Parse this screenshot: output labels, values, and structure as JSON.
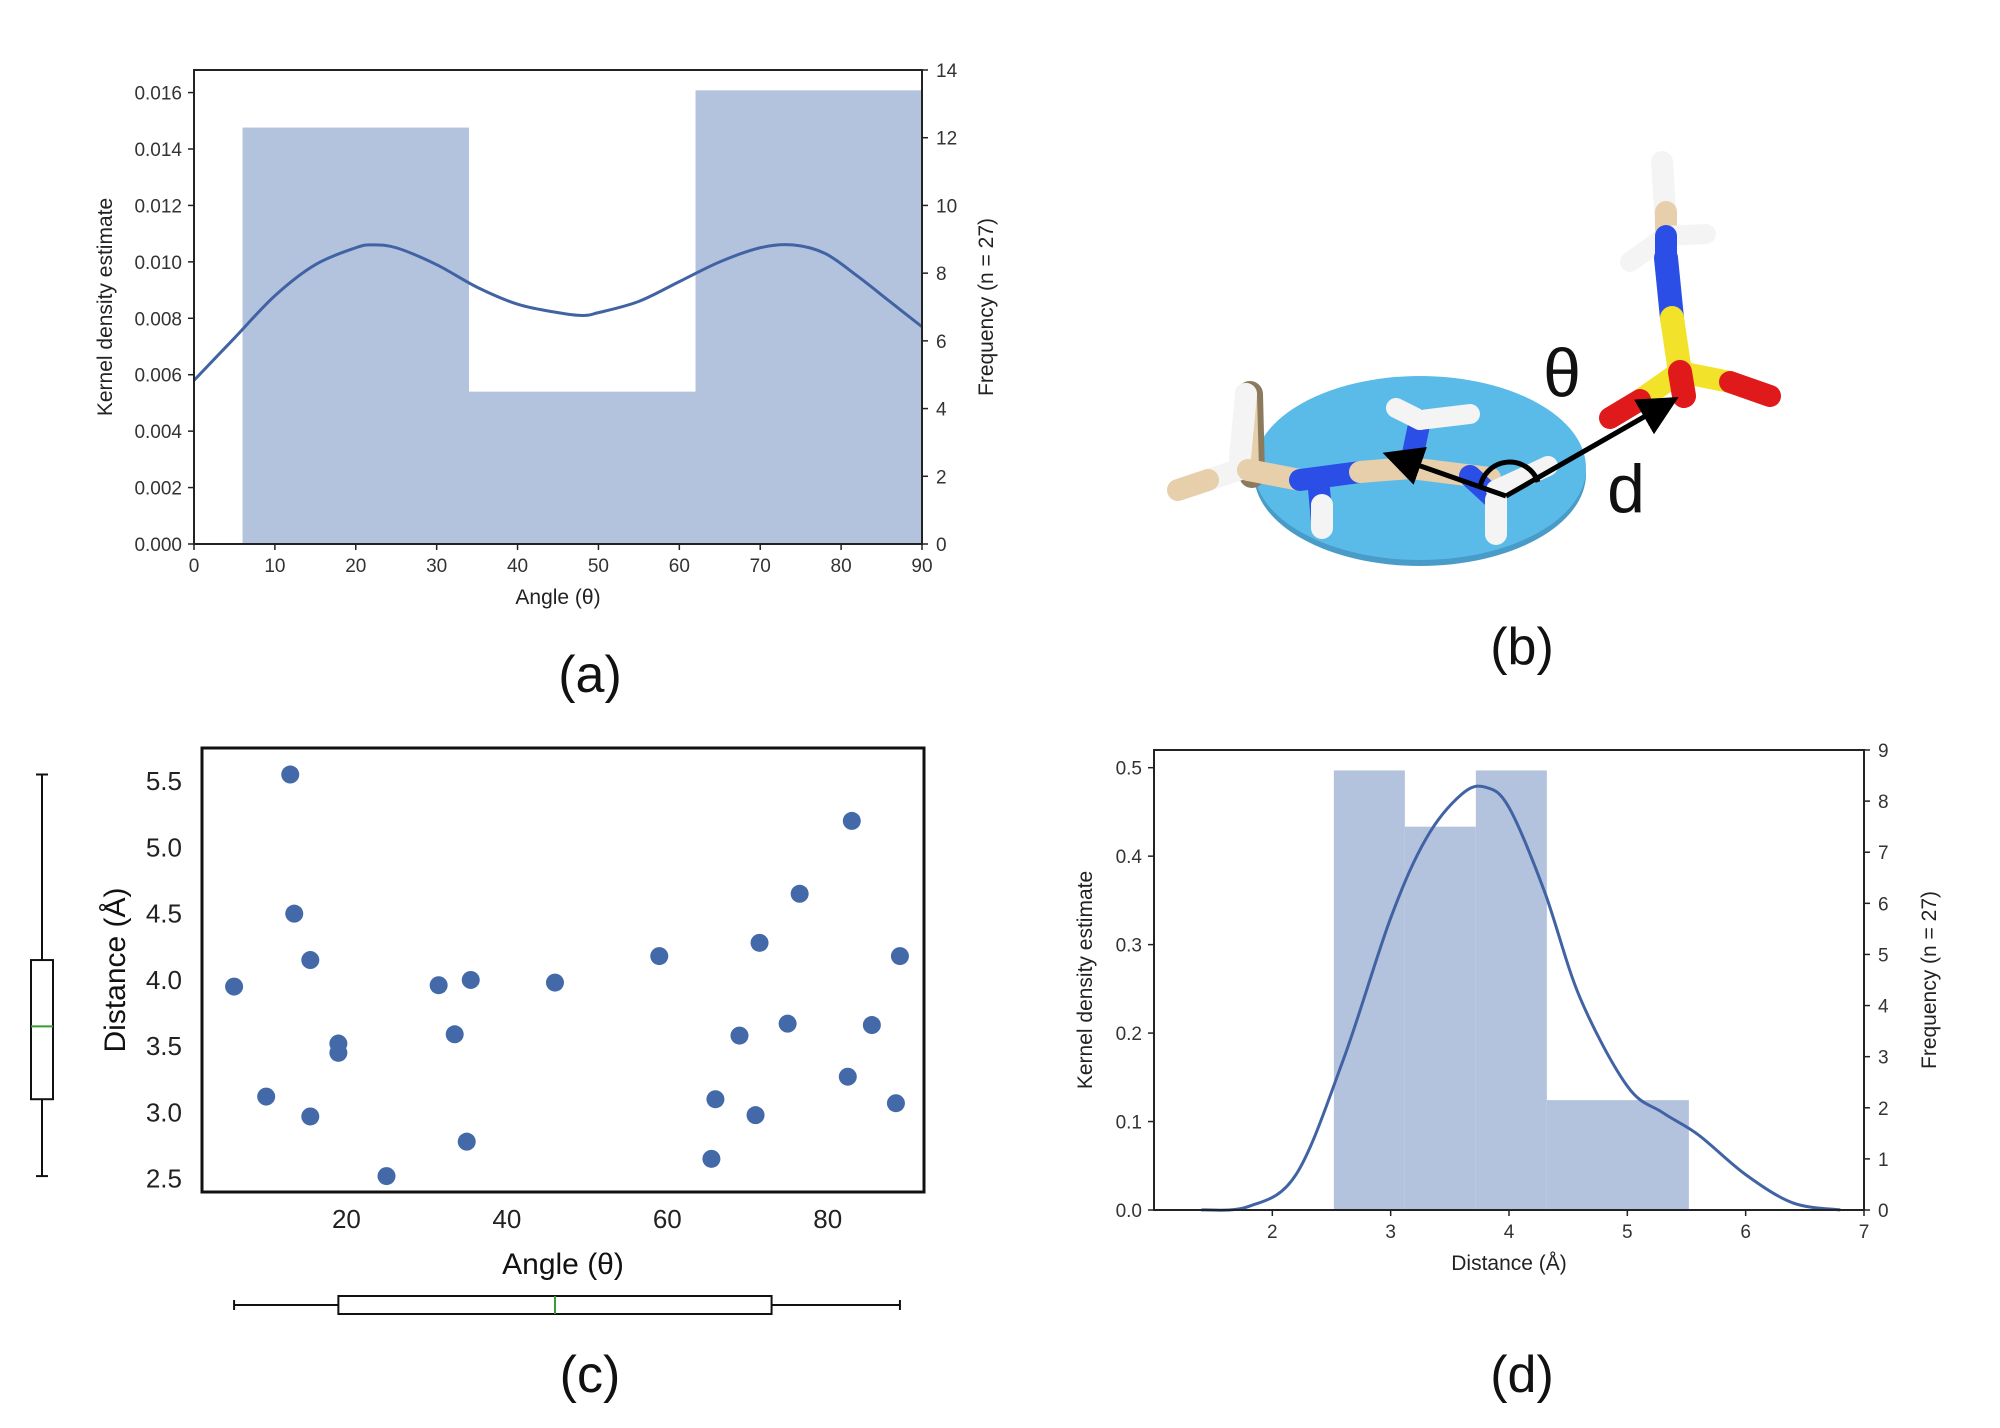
{
  "colors": {
    "bar": "#b4c3dd",
    "kde": "#4163a4",
    "point": "#4369a8",
    "median": "#3a9a3a",
    "disk": "#5bbbe8",
    "carbon": "#e7cfac",
    "nitrogen": "#2b4fe6",
    "sulfur": "#f2e22a",
    "oxygen": "#e01a1a",
    "hydrogen": "#f4f4f4",
    "arrow": "#000000"
  },
  "panel_labels": {
    "a": "(a)",
    "b": "(b)",
    "c": "(c)",
    "d": "(d)"
  },
  "molecule": {
    "theta_label": "θ",
    "d_label": "d"
  },
  "chart_data": [
    {
      "id": "a",
      "type": "bar",
      "xlabel": "Angle (θ)",
      "ylabel": "Kernel density estimate",
      "ylabel_right": "Frequency (n = 27)",
      "xlim": [
        0,
        90
      ],
      "ylim": [
        0,
        0.0168
      ],
      "ylim_right": [
        0,
        14
      ],
      "xticks": [
        "0",
        "10",
        "20",
        "30",
        "40",
        "50",
        "60",
        "70",
        "80",
        "90"
      ],
      "yticks": [
        "0.000",
        "0.002",
        "0.004",
        "0.006",
        "0.008",
        "0.010",
        "0.012",
        "0.014",
        "0.016"
      ],
      "yticks_right": [
        "0",
        "2",
        "4",
        "6",
        "8",
        "10",
        "12",
        "14"
      ],
      "histogram": [
        {
          "x0": 6,
          "x1": 34,
          "count": 12.3
        },
        {
          "x0": 34,
          "x1": 62,
          "count": 4.5
        },
        {
          "x0": 62,
          "x1": 90,
          "count": 13.4
        }
      ],
      "kde": {
        "x": [
          0,
          5,
          10,
          15,
          20,
          22,
          25,
          30,
          35,
          40,
          45,
          48,
          50,
          55,
          60,
          65,
          70,
          74,
          78,
          82,
          86,
          90
        ],
        "y": [
          0.0058,
          0.0073,
          0.0088,
          0.0099,
          0.0105,
          0.0106,
          0.0105,
          0.0099,
          0.0091,
          0.0085,
          0.0082,
          0.0081,
          0.0082,
          0.0086,
          0.0093,
          0.01,
          0.0105,
          0.0106,
          0.0103,
          0.0095,
          0.0086,
          0.0077
        ]
      }
    },
    {
      "id": "c",
      "type": "scatter",
      "xlabel": "Angle (θ)",
      "ylabel": "Distance (Å)",
      "xlim": [
        2,
        92
      ],
      "ylim": [
        2.4,
        5.75
      ],
      "xticks": [
        "20",
        "40",
        "60",
        "80"
      ],
      "yticks": [
        "2.5",
        "3.0",
        "3.5",
        "4.0",
        "4.5",
        "5.0",
        "5.5"
      ],
      "points": [
        [
          6,
          3.95
        ],
        [
          10,
          3.12
        ],
        [
          13,
          5.55
        ],
        [
          13.5,
          4.5
        ],
        [
          15.5,
          4.15
        ],
        [
          15.5,
          2.97
        ],
        [
          19,
          3.52
        ],
        [
          19,
          3.45
        ],
        [
          25,
          2.52
        ],
        [
          31.5,
          3.96
        ],
        [
          33.5,
          3.59
        ],
        [
          35,
          2.78
        ],
        [
          35.5,
          4.0
        ],
        [
          46,
          3.98
        ],
        [
          59,
          4.18
        ],
        [
          65.5,
          2.65
        ],
        [
          66,
          3.1
        ],
        [
          69,
          3.58
        ],
        [
          71,
          2.98
        ],
        [
          71.5,
          4.28
        ],
        [
          75,
          3.67
        ],
        [
          76.5,
          4.65
        ],
        [
          82.5,
          3.27
        ],
        [
          83,
          5.2
        ],
        [
          85.5,
          3.66
        ],
        [
          88.5,
          3.07
        ],
        [
          89,
          4.18
        ]
      ],
      "boxplot_x": {
        "min": 6,
        "q1": 19,
        "median": 46,
        "q3": 73,
        "max": 89
      },
      "boxplot_y": {
        "min": 2.52,
        "q1": 3.1,
        "median": 3.65,
        "q3": 4.15,
        "max": 5.55
      }
    },
    {
      "id": "d",
      "type": "bar",
      "xlabel": "Distance (Å)",
      "ylabel": "Kernel density estimate",
      "ylabel_right": "Frequency (n = 27)",
      "xlim": [
        1,
        7
      ],
      "ylim": [
        0,
        0.52
      ],
      "ylim_right": [
        0,
        9
      ],
      "xticks": [
        "2",
        "3",
        "4",
        "5",
        "6",
        "7"
      ],
      "yticks": [
        "0.0",
        "0.1",
        "0.2",
        "0.3",
        "0.4",
        "0.5"
      ],
      "yticks_right": [
        "0",
        "1",
        "2",
        "3",
        "4",
        "5",
        "6",
        "7",
        "8",
        "9"
      ],
      "histogram": [
        {
          "x0": 2.52,
          "x1": 3.12,
          "count": 8.6
        },
        {
          "x0": 3.12,
          "x1": 3.72,
          "count": 7.5
        },
        {
          "x0": 3.72,
          "x1": 4.32,
          "count": 8.6
        },
        {
          "x0": 4.32,
          "x1": 5.52,
          "count": 2.15
        }
      ],
      "kde": {
        "x": [
          1.4,
          1.8,
          2.2,
          2.6,
          3.0,
          3.3,
          3.6,
          3.8,
          4.0,
          4.3,
          4.6,
          5.0,
          5.3,
          5.6,
          6.0,
          6.4,
          6.8
        ],
        "y": [
          0.0,
          0.004,
          0.04,
          0.17,
          0.33,
          0.42,
          0.47,
          0.478,
          0.455,
          0.36,
          0.24,
          0.14,
          0.11,
          0.085,
          0.04,
          0.008,
          0.0
        ]
      }
    }
  ]
}
